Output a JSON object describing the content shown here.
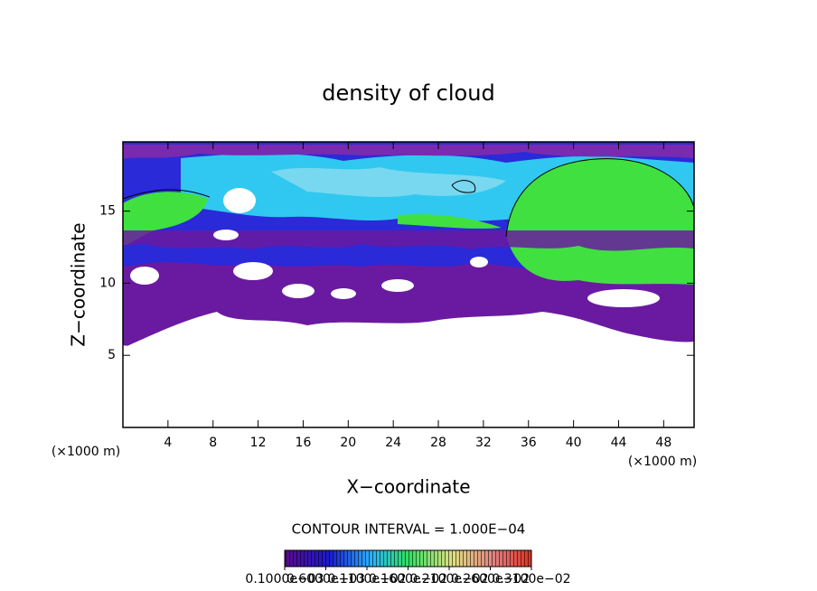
{
  "chart_data": {
    "type": "contour",
    "title": "density of cloud",
    "x_label": "X−coordinate",
    "y_label": "Z−coordinate",
    "y_unit": "(×1000 m)",
    "x_unit": "(×1000 m)",
    "xlim": [
      0,
      50.7
    ],
    "ylim": [
      0,
      19.8
    ],
    "xticks": [
      4,
      8,
      12,
      16,
      20,
      24,
      28,
      32,
      36,
      40,
      44,
      48
    ],
    "yticks": [
      5,
      10,
      15
    ],
    "annotation": "CONTOUR INTERVAL = 1.000E−04",
    "colorbar": {
      "lim": [
        0.0001,
        0.0031
      ],
      "ticks": [
        {
          "value": 0.0001,
          "label": "0.1000e−03"
        },
        {
          "value": 0.0006,
          "label": "0.6000e−03"
        },
        {
          "value": 0.0011,
          "label": "0.1100e−02"
        },
        {
          "value": 0.0016,
          "label": "0.1600e−02"
        },
        {
          "value": 0.0021,
          "label": "0.2100e−02"
        },
        {
          "value": 0.0026,
          "label": "0.2600e−02"
        },
        {
          "value": 0.0031,
          "label": "0.3100e−02"
        }
      ]
    }
  }
}
